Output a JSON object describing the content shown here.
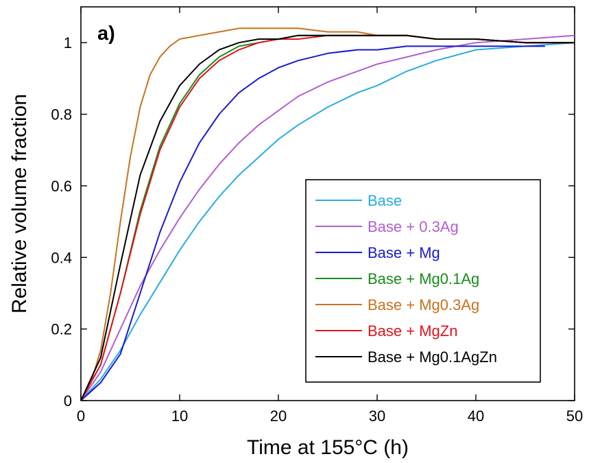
{
  "chart_data": {
    "type": "line",
    "panel_label": "a)",
    "xlabel": "Time at 155°C (h)",
    "ylabel": "Relative volume fraction",
    "xlim": [
      0,
      50
    ],
    "ylim": [
      0,
      1.1
    ],
    "xticks": [
      0,
      10,
      20,
      30,
      40,
      50
    ],
    "xtick_labels": [
      "0",
      "10",
      "20",
      "30",
      "40",
      "50"
    ],
    "yticks": [
      0,
      0.2,
      0.4,
      0.6,
      0.8,
      1
    ],
    "ytick_labels": [
      "0",
      "0.2",
      "0.4",
      "0.6",
      "0.8",
      "1"
    ],
    "grid": false,
    "legend_position": "bottom-right",
    "series": [
      {
        "name": "Base",
        "color": "#29abe2",
        "x": [
          0,
          2,
          4,
          6,
          8,
          10,
          12,
          14,
          16,
          18,
          20,
          22,
          25,
          28,
          30,
          33,
          36,
          40,
          45,
          50
        ],
        "y": [
          0,
          0.06,
          0.14,
          0.24,
          0.33,
          0.42,
          0.5,
          0.57,
          0.63,
          0.68,
          0.73,
          0.77,
          0.82,
          0.86,
          0.88,
          0.92,
          0.95,
          0.98,
          0.99,
          1.0
        ]
      },
      {
        "name": "Base + 0.3Ag",
        "color": "#b05fd0",
        "x": [
          0,
          2,
          4,
          6,
          8,
          10,
          12,
          14,
          16,
          18,
          20,
          22,
          25,
          28,
          30,
          33,
          36,
          40,
          45,
          50
        ],
        "y": [
          0,
          0.08,
          0.2,
          0.32,
          0.42,
          0.51,
          0.59,
          0.66,
          0.72,
          0.77,
          0.81,
          0.85,
          0.89,
          0.92,
          0.94,
          0.96,
          0.98,
          1.0,
          1.01,
          1.02
        ]
      },
      {
        "name": "Base + Mg",
        "color": "#1a1ad0",
        "x": [
          0,
          2,
          4,
          6,
          8,
          10,
          12,
          14,
          16,
          18,
          20,
          22,
          25,
          28,
          30,
          33,
          36,
          40,
          45,
          47
        ],
        "y": [
          0,
          0.05,
          0.13,
          0.3,
          0.47,
          0.61,
          0.72,
          0.8,
          0.86,
          0.9,
          0.93,
          0.95,
          0.97,
          0.98,
          0.98,
          0.99,
          0.99,
          0.99,
          0.99,
          0.99
        ]
      },
      {
        "name": "Base + Mg0.1Ag",
        "color": "#1a8c1a",
        "x": [
          0,
          2,
          4,
          6,
          8,
          10,
          12,
          14,
          16,
          18,
          20,
          22,
          25,
          28,
          30,
          33,
          36,
          40,
          45,
          50
        ],
        "y": [
          0,
          0.1,
          0.3,
          0.53,
          0.71,
          0.83,
          0.91,
          0.96,
          0.99,
          1.0,
          1.01,
          1.02,
          1.02,
          1.02,
          1.02,
          1.02,
          1.01,
          1.01,
          1.0,
          1.0
        ]
      },
      {
        "name": "Base + Mg0.3Ag",
        "color": "#c8721e",
        "x": [
          0,
          1,
          2,
          3,
          4,
          5,
          6,
          7,
          8,
          9,
          10,
          12,
          14,
          16,
          18,
          20,
          22,
          25,
          28,
          30,
          33,
          36,
          40,
          45,
          50
        ],
        "y": [
          0,
          0.05,
          0.14,
          0.3,
          0.5,
          0.68,
          0.82,
          0.91,
          0.96,
          0.99,
          1.01,
          1.02,
          1.03,
          1.04,
          1.04,
          1.04,
          1.04,
          1.03,
          1.03,
          1.02,
          1.02,
          1.01,
          1.01,
          1.0,
          1.0
        ]
      },
      {
        "name": "Base + MgZn",
        "color": "#e0141e",
        "x": [
          0,
          2,
          4,
          6,
          8,
          10,
          12,
          14,
          16,
          18,
          20,
          22,
          25,
          28,
          30,
          33,
          36,
          40,
          45,
          50
        ],
        "y": [
          0,
          0.1,
          0.3,
          0.52,
          0.7,
          0.82,
          0.9,
          0.95,
          0.98,
          1.0,
          1.01,
          1.01,
          1.02,
          1.02,
          1.02,
          1.02,
          1.01,
          1.01,
          1.0,
          1.0
        ]
      },
      {
        "name": "Base + Mg0.1AgZn",
        "color": "#000000",
        "x": [
          0,
          2,
          4,
          6,
          8,
          10,
          12,
          14,
          16,
          18,
          20,
          22,
          25,
          28,
          30,
          33,
          36,
          40,
          45,
          50
        ],
        "y": [
          0,
          0.12,
          0.38,
          0.63,
          0.78,
          0.88,
          0.94,
          0.98,
          1.0,
          1.01,
          1.01,
          1.02,
          1.02,
          1.02,
          1.02,
          1.02,
          1.01,
          1.01,
          1.0,
          1.0
        ]
      }
    ]
  }
}
